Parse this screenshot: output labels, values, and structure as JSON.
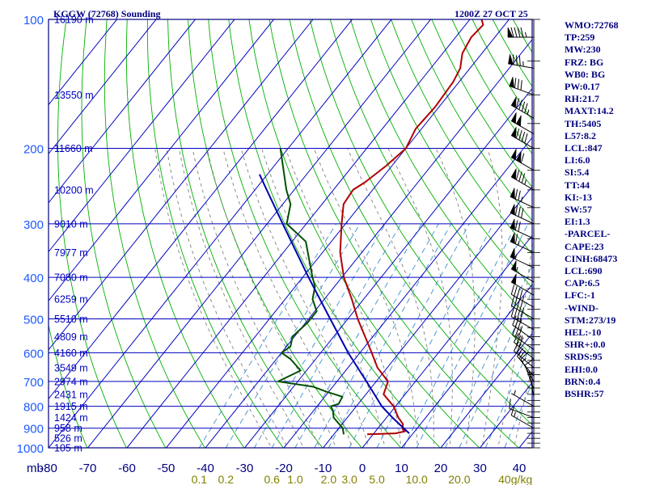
{
  "header": {
    "station_title": "KGGW (72768) Sounding",
    "valid_time": "1200Z 27 OCT 25"
  },
  "indices": [
    "WMO:72768",
    "TP:259",
    "MW:230",
    "FRZ: BG",
    "WB0: BG",
    "PW:0.17",
    "RH:21.7",
    "MAXT:14.2",
    "TH:5405",
    "L57:8.2",
    "LCL:847",
    "LI:6.0",
    "SI:5.4",
    "TT:44",
    "KI:-13",
    "SW:57",
    "EI:1.3",
    "-PARCEL-",
    "CAPE:23",
    "CINH:68473",
    "LCL:690",
    "CAP:6.5",
    "LFC:-1",
    "-WIND-",
    "STM:273/19",
    "HEL:-10",
    "SHR+:0.0",
    "SRDS:95",
    "EHI:0.0",
    "BRN:0.4",
    "BSHR:57"
  ],
  "colors": {
    "frame": "#000080",
    "isotherm": "#0000c0",
    "dry_adiabat": "#00b000",
    "moist_adiabat": "#808080",
    "mixing_ratio": "#3a8fd0",
    "temperature": "#b00000",
    "dewpoint": "#005000",
    "parcel": "#0000b0",
    "pressure_label": "#1e5aff",
    "mixing_label": "#808000"
  },
  "chart_data": {
    "type": "line",
    "xlabel": "",
    "ylabel": "mb",
    "log_pressure_axis": true,
    "ylim": [
      1000,
      100
    ],
    "xlim": [
      -80,
      40
    ],
    "pressure_levels": [
      100,
      200,
      300,
      400,
      500,
      600,
      700,
      800,
      900,
      1000
    ],
    "pressure_tick_labels": [
      "100",
      "200",
      "300",
      "400",
      "500",
      "600",
      "700",
      "800",
      "900",
      "1000"
    ],
    "temperature_ticks": [
      -80,
      -70,
      -60,
      -50,
      -40,
      -30,
      -20,
      -10,
      0,
      10,
      20,
      30,
      40
    ],
    "temperature_tick_labels": [
      "-80",
      "-70",
      "-60",
      "-50",
      "-40",
      "-30",
      "-20",
      "-10",
      "0",
      "10",
      "20",
      "30",
      "40"
    ],
    "height_labels": [
      {
        "p": 100,
        "text": "16190 m"
      },
      {
        "p": 150,
        "text": "13550 m"
      },
      {
        "p": 200,
        "text": "11660 m"
      },
      {
        "p": 250,
        "text": "10200 m"
      },
      {
        "p": 300,
        "text": "9010 m"
      },
      {
        "p": 350,
        "text": "7977 m"
      },
      {
        "p": 400,
        "text": "7080 m"
      },
      {
        "p": 450,
        "text": "6259 m"
      },
      {
        "p": 500,
        "text": "5510 m"
      },
      {
        "p": 550,
        "text": "4809 m"
      },
      {
        "p": 600,
        "text": "4160 m"
      },
      {
        "p": 650,
        "text": "3549 m"
      },
      {
        "p": 700,
        "text": "2974 m"
      },
      {
        "p": 750,
        "text": "2431 m"
      },
      {
        "p": 800,
        "text": "1915 m"
      },
      {
        "p": 850,
        "text": "1424 m"
      },
      {
        "p": 900,
        "text": "958 m"
      },
      {
        "p": 950,
        "text": "526 m"
      },
      {
        "p": 1000,
        "text": "105 m"
      }
    ],
    "mixing_ratio_labels": [
      {
        "w": 0.1,
        "text": "0.1"
      },
      {
        "w": 0.2,
        "text": "0.2"
      },
      {
        "w": 0.6,
        "text": "0.6"
      },
      {
        "w": 1.0,
        "text": "1.0"
      },
      {
        "w": 2.0,
        "text": "2.0"
      },
      {
        "w": 3.0,
        "text": "3.0"
      },
      {
        "w": 5.0,
        "text": "5.0"
      },
      {
        "w": 10.0,
        "text": "10.0"
      },
      {
        "w": 20.0,
        "text": "20.0"
      },
      {
        "w": 40.0,
        "text": "40"
      }
    ],
    "mixing_ratio_unit": "g/kg",
    "series": [
      {
        "key": "temperature",
        "points": [
          {
            "p": 930,
            "t": -1.5
          },
          {
            "p": 925,
            "t": 5.5
          },
          {
            "p": 915,
            "t": 7.5
          },
          {
            "p": 905,
            "t": 6.5
          },
          {
            "p": 880,
            "t": 5.5
          },
          {
            "p": 850,
            "t": 3.0
          },
          {
            "p": 800,
            "t": -0.5
          },
          {
            "p": 750,
            "t": -5.5
          },
          {
            "p": 700,
            "t": -7.0
          },
          {
            "p": 650,
            "t": -12.5
          },
          {
            "p": 600,
            "t": -17.0
          },
          {
            "p": 550,
            "t": -22.0
          },
          {
            "p": 500,
            "t": -27.5
          },
          {
            "p": 450,
            "t": -33.0
          },
          {
            "p": 400,
            "t": -39.5
          },
          {
            "p": 350,
            "t": -45.5
          },
          {
            "p": 300,
            "t": -51.0
          },
          {
            "p": 270,
            "t": -54.5
          },
          {
            "p": 250,
            "t": -55.0
          },
          {
            "p": 240,
            "t": -53.5
          },
          {
            "p": 220,
            "t": -51.5
          },
          {
            "p": 200,
            "t": -50.0
          },
          {
            "p": 180,
            "t": -51.5
          },
          {
            "p": 160,
            "t": -51.0
          },
          {
            "p": 140,
            "t": -51.5
          },
          {
            "p": 130,
            "t": -52.5
          },
          {
            "p": 120,
            "t": -55.0
          },
          {
            "p": 110,
            "t": -56.0
          },
          {
            "p": 103,
            "t": -55.5
          },
          {
            "p": 100,
            "t": -57.0
          }
        ]
      },
      {
        "key": "dewpoint",
        "points": [
          {
            "p": 930,
            "t": -7.5
          },
          {
            "p": 900,
            "t": -9.0
          },
          {
            "p": 850,
            "t": -13.5
          },
          {
            "p": 820,
            "t": -15.0
          },
          {
            "p": 800,
            "t": -16.5
          },
          {
            "p": 790,
            "t": -15.0
          },
          {
            "p": 760,
            "t": -15.5
          },
          {
            "p": 740,
            "t": -20.5
          },
          {
            "p": 720,
            "t": -25.0
          },
          {
            "p": 700,
            "t": -35.0
          },
          {
            "p": 660,
            "t": -31.5
          },
          {
            "p": 620,
            "t": -36.5
          },
          {
            "p": 600,
            "t": -40.0
          },
          {
            "p": 580,
            "t": -39.0
          },
          {
            "p": 550,
            "t": -40.5
          },
          {
            "p": 510,
            "t": -39.5
          },
          {
            "p": 480,
            "t": -39.5
          },
          {
            "p": 450,
            "t": -43.0
          },
          {
            "p": 420,
            "t": -45.0
          },
          {
            "p": 400,
            "t": -47.5
          },
          {
            "p": 330,
            "t": -56.5
          },
          {
            "p": 300,
            "t": -65.0
          },
          {
            "p": 270,
            "t": -68.0
          },
          {
            "p": 250,
            "t": -72.0
          },
          {
            "p": 200,
            "t": -82.0
          }
        ]
      },
      {
        "key": "parcel",
        "points": [
          {
            "p": 925,
            "t": 9.0
          },
          {
            "p": 850,
            "t": 1.5
          },
          {
            "p": 800,
            "t": -3.5
          },
          {
            "p": 700,
            "t": -12.5
          },
          {
            "p": 600,
            "t": -23.0
          },
          {
            "p": 500,
            "t": -34.5
          },
          {
            "p": 400,
            "t": -48.5
          },
          {
            "p": 300,
            "t": -66.0
          },
          {
            "p": 250,
            "t": -77.0
          },
          {
            "p": 230,
            "t": -82.0
          }
        ]
      }
    ],
    "wind_barbs": [
      {
        "p": 110,
        "dir": 270,
        "kt": 95
      },
      {
        "p": 130,
        "dir": 280,
        "kt": 85
      },
      {
        "p": 150,
        "dir": 290,
        "kt": 80
      },
      {
        "p": 170,
        "dir": 300,
        "kt": 95
      },
      {
        "p": 185,
        "dir": 300,
        "kt": 100
      },
      {
        "p": 200,
        "dir": 300,
        "kt": 90
      },
      {
        "p": 225,
        "dir": 300,
        "kt": 110
      },
      {
        "p": 250,
        "dir": 300,
        "kt": 85
      },
      {
        "p": 275,
        "dir": 295,
        "kt": 75
      },
      {
        "p": 300,
        "dir": 295,
        "kt": 80
      },
      {
        "p": 325,
        "dir": 295,
        "kt": 70
      },
      {
        "p": 350,
        "dir": 295,
        "kt": 65
      },
      {
        "p": 380,
        "dir": 295,
        "kt": 55
      },
      {
        "p": 410,
        "dir": 300,
        "kt": 55
      },
      {
        "p": 440,
        "dir": 300,
        "kt": 50
      },
      {
        "p": 470,
        "dir": 300,
        "kt": 45
      },
      {
        "p": 500,
        "dir": 300,
        "kt": 45
      },
      {
        "p": 530,
        "dir": 300,
        "kt": 40
      },
      {
        "p": 560,
        "dir": 305,
        "kt": 35
      },
      {
        "p": 590,
        "dir": 305,
        "kt": 35
      },
      {
        "p": 620,
        "dir": 310,
        "kt": 30
      },
      {
        "p": 650,
        "dir": 310,
        "kt": 25
      },
      {
        "p": 680,
        "dir": 320,
        "kt": 20
      },
      {
        "p": 700,
        "dir": 330,
        "kt": 15
      },
      {
        "p": 730,
        "dir": 340,
        "kt": 10
      },
      {
        "p": 760,
        "dir": 350,
        "kt": 5
      },
      {
        "p": 800,
        "dir": 300,
        "kt": 5
      },
      {
        "p": 850,
        "dir": 290,
        "kt": 10
      },
      {
        "p": 900,
        "dir": 300,
        "kt": 15
      }
    ],
    "grid": true
  }
}
